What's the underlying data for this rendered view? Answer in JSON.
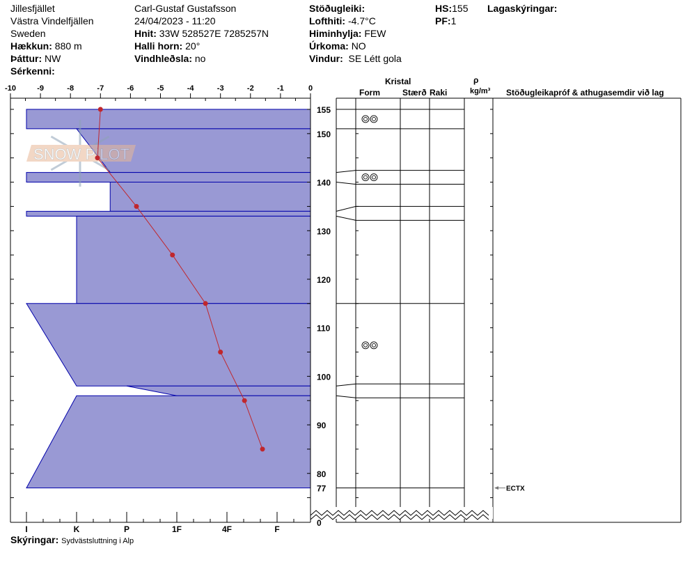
{
  "header": {
    "col1": [
      "Jillesfjället",
      "Västra Vindelfjällen",
      "Sweden"
    ],
    "elevation": {
      "label": "Hækkun:",
      "value": "880 m"
    },
    "aspect": {
      "label": "Þáttur:",
      "value": "NW"
    },
    "features": {
      "label": "Sérkenni:",
      "value": ""
    },
    "observer": "Carl-Gustaf Gustafsson",
    "datetime": "24/04/2023 - 11:20",
    "coords": {
      "label": "Hnit:",
      "value": "33W 528527E 7285257N"
    },
    "slope": {
      "label": "Halli horn:",
      "value": "20°"
    },
    "wind_loading": {
      "label": "Vindhleðsla:",
      "value": "no"
    },
    "stability": {
      "label": "Stöðugleiki:",
      "value": ""
    },
    "air_temp": {
      "label": "Lofthiti:",
      "value": "-4.7°C"
    },
    "sky": {
      "label": "Himinhylja:",
      "value": "FEW"
    },
    "precip": {
      "label": "Úrkoma:",
      "value": "NO"
    },
    "wind": {
      "label": "Vindur:",
      "value": "SE Létt gola"
    },
    "hs": {
      "label": "HS:",
      "value": "155"
    },
    "pf": {
      "label": "PF:",
      "value": "1"
    },
    "layer_notes": {
      "label": "Lagaskýringar:",
      "value": ""
    }
  },
  "table_headers": {
    "crystal": "Kristal",
    "form": "Form",
    "size": "Stærð",
    "moisture": "Raki",
    "rho": "ρ",
    "density_unit": "kg/m³",
    "comments": "Stöðugleikapróf & athugasemdir við lag"
  },
  "footer": {
    "label": "Skýringar:",
    "value": "Sydvästsluttning i Alp"
  },
  "watermark": "SNOW PILOT",
  "chart_data": {
    "type": "snow-profile",
    "temperature_axis": {
      "ticks": [
        -10,
        -9,
        -8,
        -7,
        -6,
        -5,
        -4,
        -3,
        -2,
        -1,
        0
      ],
      "range": [
        -10,
        0
      ]
    },
    "height_axis": {
      "ticks": [
        155,
        150,
        140,
        130,
        120,
        110,
        100,
        90,
        80,
        77,
        0
      ],
      "range": [
        0,
        155
      ],
      "unit": "cm"
    },
    "hardness_axis": {
      "ticks": [
        "I",
        "K",
        "P",
        "1F",
        "4F",
        "F"
      ]
    },
    "layer_color": "#9999d4",
    "layer_edge_color": "#0000aa",
    "temp_color": "#c0272d",
    "layers": [
      {
        "top": 155,
        "bottom": 151,
        "hardness_top": "I",
        "hardness_bottom": "I",
        "form_icon": "clustered-rounded-grains-icon"
      },
      {
        "top": 151,
        "bottom": 142,
        "hardness_top": "K",
        "hardness_bottom": "P+"
      },
      {
        "top": 142,
        "bottom": 140,
        "hardness_top": "I",
        "hardness_bottom": "I",
        "form_icon": "clustered-rounded-grains-icon"
      },
      {
        "top": 140,
        "bottom": 134,
        "hardness_top": "P+",
        "hardness_bottom": "P+"
      },
      {
        "top": 134,
        "bottom": 133,
        "hardness_top": "I",
        "hardness_bottom": "I"
      },
      {
        "top": 133,
        "bottom": 115,
        "hardness_top": "K",
        "hardness_bottom": "K"
      },
      {
        "top": 115,
        "bottom": 98,
        "hardness_top": "I",
        "hardness_bottom": "K",
        "form_icon": "clustered-rounded-grains-icon"
      },
      {
        "top": 98,
        "bottom": 96,
        "hardness_top": "P",
        "hardness_bottom": "1F"
      },
      {
        "top": 96,
        "bottom": 77,
        "hardness_top": "K",
        "hardness_bottom": "I"
      }
    ],
    "temperature_profile": [
      {
        "height": 155,
        "temp": -7.0
      },
      {
        "height": 145,
        "temp": -7.1
      },
      {
        "height": 135,
        "temp": -5.8
      },
      {
        "height": 125,
        "temp": -4.6
      },
      {
        "height": 115,
        "temp": -3.5
      },
      {
        "height": 105,
        "temp": -3.0
      },
      {
        "height": 95,
        "temp": -2.2
      },
      {
        "height": 85,
        "temp": -1.6
      }
    ],
    "tests": [
      {
        "height": 77,
        "label": "ECTX"
      }
    ]
  }
}
